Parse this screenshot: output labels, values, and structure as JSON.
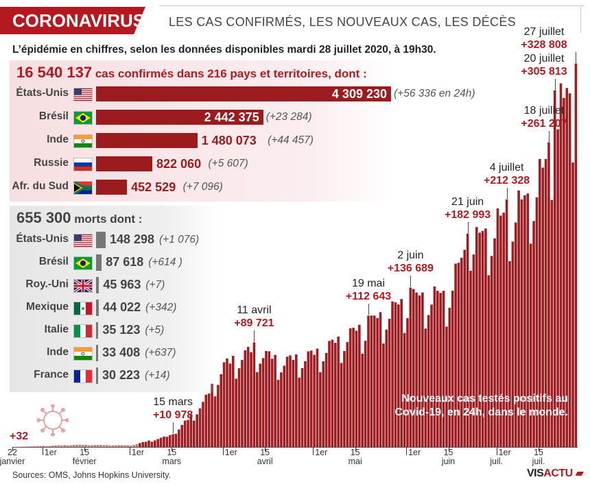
{
  "header": {
    "tag": "CORONAVIRUS",
    "subtitle": "LES CAS CONFIRMÉS, LES NOUVEAUX CAS, LES DÉCÈS",
    "intro": "L’épidémie en chiffres, selon les données disponibles mardi 28 juillet 2020, à 19h30."
  },
  "cases": {
    "total": "16 540 137",
    "title_rest": "cas confirmés dans 216 pays et territoires, dont :",
    "rows": [
      {
        "country": "États-Unis",
        "flag": "us-flag",
        "value": 4309230,
        "value_text": "4 309 230",
        "delta": "(+56 336 en 24h)"
      },
      {
        "country": "Brésil",
        "flag": "brazil-flag",
        "value": 2442375,
        "value_text": "2 442 375",
        "delta": "(+23 284)"
      },
      {
        "country": "Inde",
        "flag": "india-flag",
        "value": 1480073,
        "value_text": "1 480 073",
        "delta": "(+44 457)"
      },
      {
        "country": "Russie",
        "flag": "russia-flag",
        "value": 822060,
        "value_text": "822 060",
        "delta": "(+5 607)"
      },
      {
        "country": "Afr. du Sud",
        "flag": "south-africa-flag",
        "value": 452529,
        "value_text": "452 529",
        "delta": "(+7 096)"
      }
    ]
  },
  "deaths": {
    "total": "655 300",
    "title_rest": "morts dont :",
    "rows": [
      {
        "country": "États-Unis",
        "flag": "us-flag",
        "value": 148298,
        "value_text": "148 298",
        "delta": "(+1 076)"
      },
      {
        "country": "Brésil",
        "flag": "brazil-flag",
        "value": 87618,
        "value_text": "87 618",
        "delta": "(+614 )"
      },
      {
        "country": "Roy.-Uni",
        "flag": "uk-flag",
        "value": 45963,
        "value_text": "45 963",
        "delta": "(+7)"
      },
      {
        "country": "Mexique",
        "flag": "mexico-flag",
        "value": 44022,
        "value_text": "44 022",
        "delta": "(+342)"
      },
      {
        "country": "Italie",
        "flag": "italy-flag",
        "value": 35123,
        "value_text": "35 123",
        "delta": "(+5)"
      },
      {
        "country": "Inde",
        "flag": "india-flag",
        "value": 33408,
        "value_text": "33 408",
        "delta": "(+637)"
      },
      {
        "country": "France",
        "flag": "france-flag",
        "value": 30223,
        "value_text": "30 223",
        "delta": "(+14)"
      }
    ]
  },
  "chart_data": {
    "type": "bar",
    "title": "Nouveaux cas testés positifs au Covid-19, en 24h, dans le monde.",
    "x_start": "2020-01-22",
    "x_end": "2020-07-27",
    "ylim": [
      0,
      335000
    ],
    "first_value_label": "+32",
    "key_points": [
      {
        "date": "2020-01-22",
        "value": 32
      },
      {
        "date": "2020-02-12",
        "value": 2000
      },
      {
        "date": "2020-03-01",
        "value": 1500
      },
      {
        "date": "2020-03-15",
        "value": 10978
      },
      {
        "date": "2020-03-25",
        "value": 40000
      },
      {
        "date": "2020-04-01",
        "value": 75000
      },
      {
        "date": "2020-04-11",
        "value": 89721
      },
      {
        "date": "2020-04-20",
        "value": 78000
      },
      {
        "date": "2020-05-01",
        "value": 85000
      },
      {
        "date": "2020-05-19",
        "value": 112643
      },
      {
        "date": "2020-06-02",
        "value": 136689
      },
      {
        "date": "2020-06-14",
        "value": 140000
      },
      {
        "date": "2020-06-21",
        "value": 182993
      },
      {
        "date": "2020-07-04",
        "value": 212328
      },
      {
        "date": "2020-07-10",
        "value": 225000
      },
      {
        "date": "2020-07-18",
        "value": 261207
      },
      {
        "date": "2020-07-20",
        "value": 305813
      },
      {
        "date": "2020-07-27",
        "value": 328808
      }
    ],
    "annotations": [
      {
        "date_label": "15 mars",
        "value_label": "+10 978",
        "date": "2020-03-15",
        "value": 10978
      },
      {
        "date_label": "11 avril",
        "value_label": "+89 721",
        "date": "2020-04-11",
        "value": 89721
      },
      {
        "date_label": "19 mai",
        "value_label": "+112 643",
        "date": "2020-05-19",
        "value": 112643
      },
      {
        "date_label": "2 juin",
        "value_label": "+136 689",
        "date": "2020-06-02",
        "value": 136689
      },
      {
        "date_label": "21 juin",
        "value_label": "+182 993",
        "date": "2020-06-21",
        "value": 182993
      },
      {
        "date_label": "4 juillet",
        "value_label": "+212 328",
        "date": "2020-07-04",
        "value": 212328
      },
      {
        "date_label": "18 juillet",
        "value_label": "+261 207",
        "date": "2020-07-18",
        "value": 261207
      },
      {
        "date_label": "20 juillet",
        "value_label": "+305 813",
        "date": "2020-07-20",
        "value": 305813
      },
      {
        "date_label": "27 juillet",
        "value_label": "+328 808",
        "date": "2020-07-27",
        "value": 328808
      }
    ],
    "x_ticks": [
      {
        "date": "2020-01-22",
        "line1": "22",
        "line2": "janvier"
      },
      {
        "date": "2020-02-01",
        "line1": "1er",
        "line2": ""
      },
      {
        "date": "2020-02-15",
        "line1": "15",
        "line2": "février"
      },
      {
        "date": "2020-03-01",
        "line1": "1er",
        "line2": ""
      },
      {
        "date": "2020-03-15",
        "line1": "15",
        "line2": "mars"
      },
      {
        "date": "2020-04-01",
        "line1": "1er",
        "line2": ""
      },
      {
        "date": "2020-04-15",
        "line1": "15",
        "line2": "avril"
      },
      {
        "date": "2020-05-01",
        "line1": "1er",
        "line2": ""
      },
      {
        "date": "2020-05-15",
        "line1": "15",
        "line2": "mai"
      },
      {
        "date": "2020-06-01",
        "line1": "1er",
        "line2": ""
      },
      {
        "date": "2020-06-15",
        "line1": "15",
        "line2": "juin"
      },
      {
        "date": "2020-07-01",
        "line1": "1er",
        "line2": "juil."
      },
      {
        "date": "2020-07-15",
        "line1": "15",
        "line2": "juil."
      }
    ]
  },
  "note": "Nouveaux cas testés positifs au Covid-19, en 24h, dans le monde.",
  "source": "Sources: OMS, Johns Hopkins University.",
  "logo": {
    "text": "VISACTU",
    "icon": "visactu-logo-icon"
  },
  "colors": {
    "brand": "#b3191f",
    "bar": "#9b1b1f",
    "death_bar": "#777777"
  }
}
